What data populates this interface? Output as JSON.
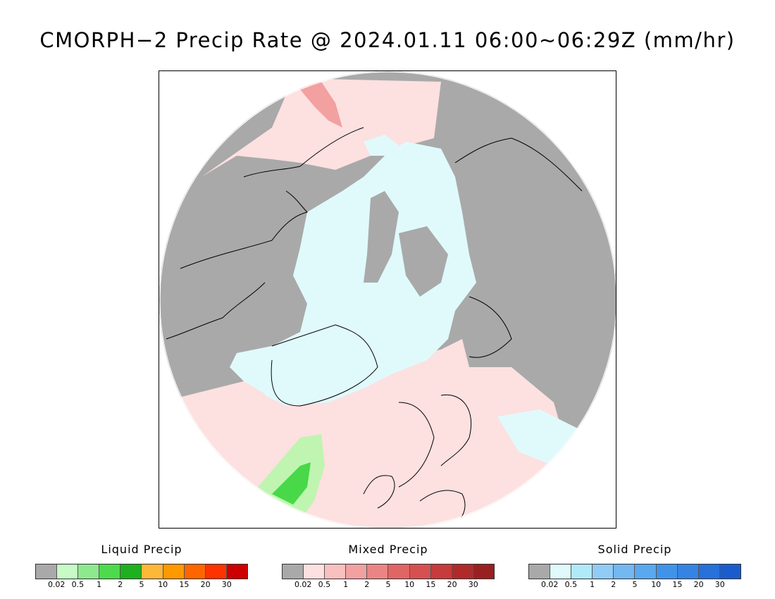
{
  "title": "CMORPH−2 Precip Rate @ 2024.01.11 06:00~06:29Z (mm/hr)",
  "colors": {
    "no_precip": "#a9a9a9",
    "mixed_light": "#fde0e0",
    "solid_light": "#e0fafc",
    "liquid_light": "#bff5b0",
    "liquid_mid": "#48d848",
    "coast": "#000000"
  },
  "legends": [
    {
      "name": "liquid",
      "label": "Liquid Precip",
      "colors": [
        "#a9a9a9",
        "#c8fac8",
        "#8ee88e",
        "#4ddb4d",
        "#1fb01f",
        "#fdb83a",
        "#ff9900",
        "#ff6600",
        "#ff3300",
        "#cc0000"
      ],
      "ticks": [
        "0.02",
        "0.5",
        "1",
        "2",
        "5",
        "10",
        "15",
        "20",
        "30"
      ]
    },
    {
      "name": "mixed",
      "label": "Mixed Precip",
      "colors": [
        "#a9a9a9",
        "#fde0e0",
        "#f9c0c0",
        "#f2a0a0",
        "#eb8585",
        "#e06565",
        "#d65050",
        "#c63b3b",
        "#b02a2a",
        "#992020"
      ],
      "ticks": [
        "0.02",
        "0.5",
        "1",
        "2",
        "5",
        "10",
        "15",
        "20",
        "30"
      ]
    },
    {
      "name": "solid",
      "label": "Solid Precip",
      "colors": [
        "#a9a9a9",
        "#e0fafc",
        "#b0eaf8",
        "#90ccf5",
        "#74b8f2",
        "#5aa8ef",
        "#3f94ea",
        "#3584e3",
        "#2870da",
        "#1b5ccc"
      ],
      "ticks": [
        "0.02",
        "0.5",
        "1",
        "2",
        "5",
        "10",
        "15",
        "20",
        "30"
      ]
    }
  ]
}
